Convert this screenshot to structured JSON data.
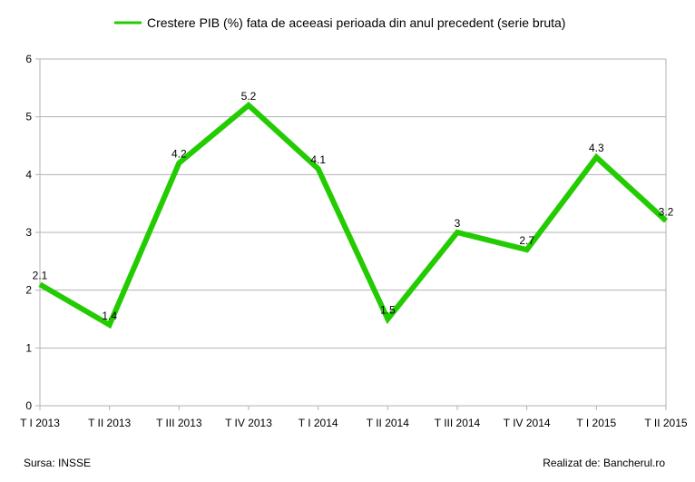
{
  "chart_data": {
    "type": "line",
    "title": "",
    "xlabel": "",
    "ylabel": "",
    "categories": [
      "T I 2013",
      "T II 2013",
      "T III 2013",
      "T IV 2013",
      "T I 2014",
      "T II 2014",
      "T III 2014",
      "T IV 2014",
      "T I 2015",
      "T II 2015"
    ],
    "series": [
      {
        "name": "Crestere PIB (%) fata de aceeasi perioada din anul precedent (serie bruta)",
        "values": [
          2.1,
          1.4,
          4.2,
          5.2,
          4.1,
          1.5,
          3,
          2.7,
          4.3,
          3.2
        ],
        "data_labels": [
          "2.1",
          "1.4",
          "4.2",
          "5.2",
          "4.1",
          "1.5",
          "3",
          "2.7",
          "4.3",
          "3.2"
        ],
        "color": "#22cc00"
      }
    ],
    "ylim": [
      0,
      6
    ],
    "yticks": [
      "0",
      "1",
      "2",
      "3",
      "4",
      "5",
      "6"
    ],
    "grid": true,
    "legend_position": "top"
  },
  "footer": {
    "source": "Sursa: INSSE",
    "credit": "Realizat de: Bancherul.ro"
  },
  "colors": {
    "series": "#22cc00",
    "grid": "#b3b3b3",
    "axis": "#b3b3b3"
  }
}
